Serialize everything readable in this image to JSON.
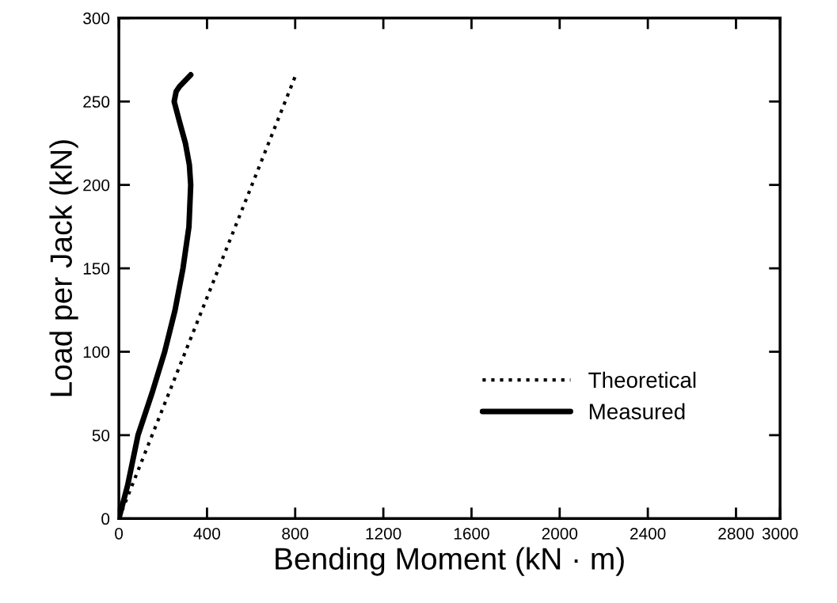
{
  "chart_data": {
    "type": "line",
    "xlabel": "Bending Moment (kN · m)",
    "ylabel": "Load per Jack (kN)",
    "xlim": [
      0,
      3000
    ],
    "xticks": [
      0,
      400,
      800,
      1200,
      1600,
      2000,
      2400,
      2800,
      3000
    ],
    "ylim": [
      0,
      300
    ],
    "yticks": [
      0,
      50,
      100,
      150,
      200,
      250,
      300
    ],
    "grid": false,
    "legend": "bottom right",
    "series": [
      {
        "name": "Theoretical",
        "color": "#000000",
        "line_style": "dotted",
        "x": [
          0,
          800
        ],
        "values": [
          0,
          265
        ]
      },
      {
        "name": "Measured",
        "color": "#000000",
        "line_style": "solid",
        "x": [
          0,
          40,
          87,
          150,
          208,
          255,
          291,
          318,
          326,
          320,
          302,
          275,
          251,
          260,
          275,
          326
        ],
        "values": [
          0,
          20,
          50,
          75,
          100,
          125,
          150,
          175,
          200,
          212,
          225,
          238,
          250,
          256,
          259,
          266
        ]
      }
    ]
  }
}
